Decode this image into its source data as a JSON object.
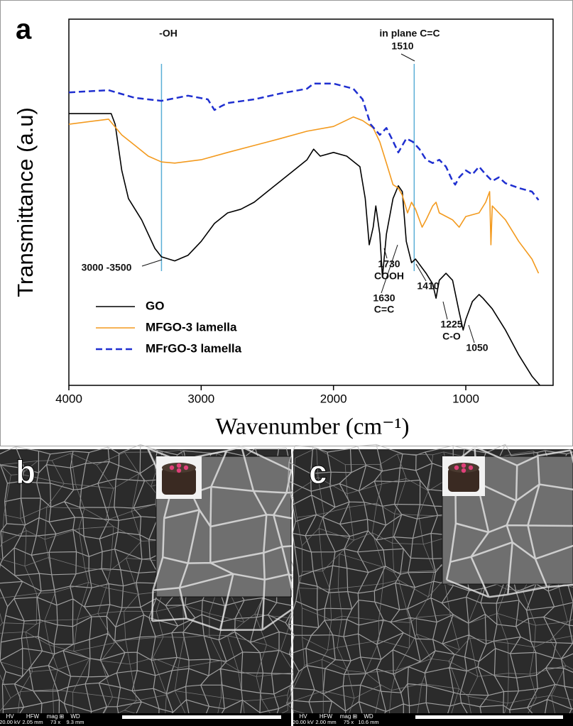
{
  "chart_data": {
    "type": "line",
    "panel_label": "a",
    "xlabel": "Wavenumber (cm⁻¹)",
    "ylabel": "Transmittance (a.u)",
    "xlim": [
      4000,
      340
    ],
    "xticks": [
      4000,
      3000,
      2000,
      1000
    ],
    "ylim": [
      0,
      100
    ],
    "legend": "lower-left",
    "reference_lines": [
      3300,
      1390
    ],
    "reference_color": "#5aaed6",
    "annotations": [
      "-OH",
      "in plane C=C",
      "1510",
      "3000 -3500",
      "1730",
      "COOH",
      "1630",
      "C=C",
      "1410",
      "1225",
      "C-O",
      "1050"
    ],
    "series": [
      {
        "name": "GO",
        "color": "#000000",
        "dash": "solid",
        "x": [
          4000,
          3750,
          3680,
          3650,
          3600,
          3550,
          3450,
          3350,
          3300,
          3200,
          3100,
          3000,
          2900,
          2800,
          2700,
          2600,
          2500,
          2400,
          2300,
          2200,
          2150,
          2100,
          2000,
          1900,
          1800,
          1760,
          1730,
          1700,
          1680,
          1650,
          1630,
          1600,
          1550,
          1510,
          1480,
          1450,
          1410,
          1380,
          1300,
          1250,
          1225,
          1200,
          1150,
          1100,
          1050,
          1020,
          1000,
          950,
          900,
          870,
          800,
          700,
          600,
          500,
          440
        ],
        "values": [
          74.2,
          74.2,
          74.2,
          71.3,
          58.7,
          51.0,
          45.2,
          37.4,
          35.1,
          34.0,
          35.5,
          39.3,
          44.2,
          47.1,
          48.1,
          50.0,
          52.9,
          55.8,
          58.7,
          61.6,
          64.5,
          62.6,
          63.6,
          62.6,
          59.7,
          51.0,
          38.4,
          43.2,
          49.0,
          41.3,
          29.5,
          41.3,
          51.0,
          54.5,
          52.9,
          39.3,
          33.5,
          34.5,
          30.6,
          27.7,
          23.8,
          28.7,
          30.6,
          28.7,
          20.0,
          15.1,
          18.0,
          22.9,
          24.8,
          23.8,
          20.9,
          15.1,
          8.3,
          2.5,
          0
        ]
      },
      {
        "name": "MFGO-3 lamella",
        "color": "#f39a1e",
        "dash": "solid",
        "x": [
          4000,
          3700,
          3600,
          3500,
          3400,
          3300,
          3200,
          3000,
          2800,
          2600,
          2400,
          2200,
          2000,
          1850,
          1780,
          1700,
          1650,
          1600,
          1550,
          1510,
          1480,
          1440,
          1410,
          1380,
          1330,
          1300,
          1250,
          1225,
          1200,
          1100,
          1050,
          1000,
          900,
          850,
          820,
          810,
          800,
          750,
          700,
          600,
          500,
          450
        ],
        "values": [
          71.3,
          72.7,
          68.4,
          65.5,
          62.6,
          61.0,
          60.7,
          61.6,
          63.6,
          65.5,
          67.4,
          69.4,
          70.7,
          73.3,
          72.3,
          70.3,
          66.5,
          60.7,
          54.8,
          53.9,
          51.9,
          47.1,
          50.0,
          48.1,
          43.2,
          45.2,
          49.0,
          50.0,
          47.1,
          45.2,
          43.2,
          46.1,
          47.1,
          50.0,
          52.9,
          38.4,
          49.0,
          47.1,
          45.2,
          39.3,
          34.5,
          30.6
        ]
      },
      {
        "name": "MFrGO-3 lamella",
        "color": "#1f2fd0",
        "dash": "dashed",
        "x": [
          4000,
          3700,
          3500,
          3300,
          3100,
          2950,
          2900,
          2850,
          2800,
          2600,
          2400,
          2200,
          2150,
          2000,
          1850,
          1780,
          1720,
          1650,
          1600,
          1560,
          1510,
          1450,
          1400,
          1350,
          1300,
          1250,
          1200,
          1150,
          1100,
          1080,
          1050,
          1000,
          950,
          900,
          850,
          800,
          750,
          700,
          600,
          500,
          450
        ],
        "values": [
          80.0,
          80.6,
          78.5,
          77.7,
          79.1,
          78.1,
          75.2,
          76.2,
          77.1,
          78.1,
          79.7,
          81.0,
          82.4,
          82.4,
          81.0,
          78.1,
          71.3,
          68.4,
          70.3,
          67.4,
          63.6,
          67.4,
          66.5,
          64.5,
          61.6,
          60.7,
          61.6,
          59.7,
          55.8,
          54.8,
          56.8,
          58.7,
          57.6,
          59.7,
          57.6,
          55.8,
          56.8,
          55.2,
          53.9,
          52.9,
          50.6
        ]
      }
    ]
  },
  "sem_panels": [
    {
      "label": "b",
      "info_headers": [
        "HV",
        "HFW",
        "mag ⊞",
        "WD"
      ],
      "info_values": [
        "20.00 kV",
        "2.05 mm",
        "73 x",
        "9.3 mm"
      ]
    },
    {
      "label": "c",
      "info_headers": [
        "HV",
        "HFW",
        "mag ⊞",
        "WD"
      ],
      "info_values": [
        "20.00 kV",
        "2.00 mm",
        "75 x",
        "10.6 mm"
      ]
    }
  ]
}
